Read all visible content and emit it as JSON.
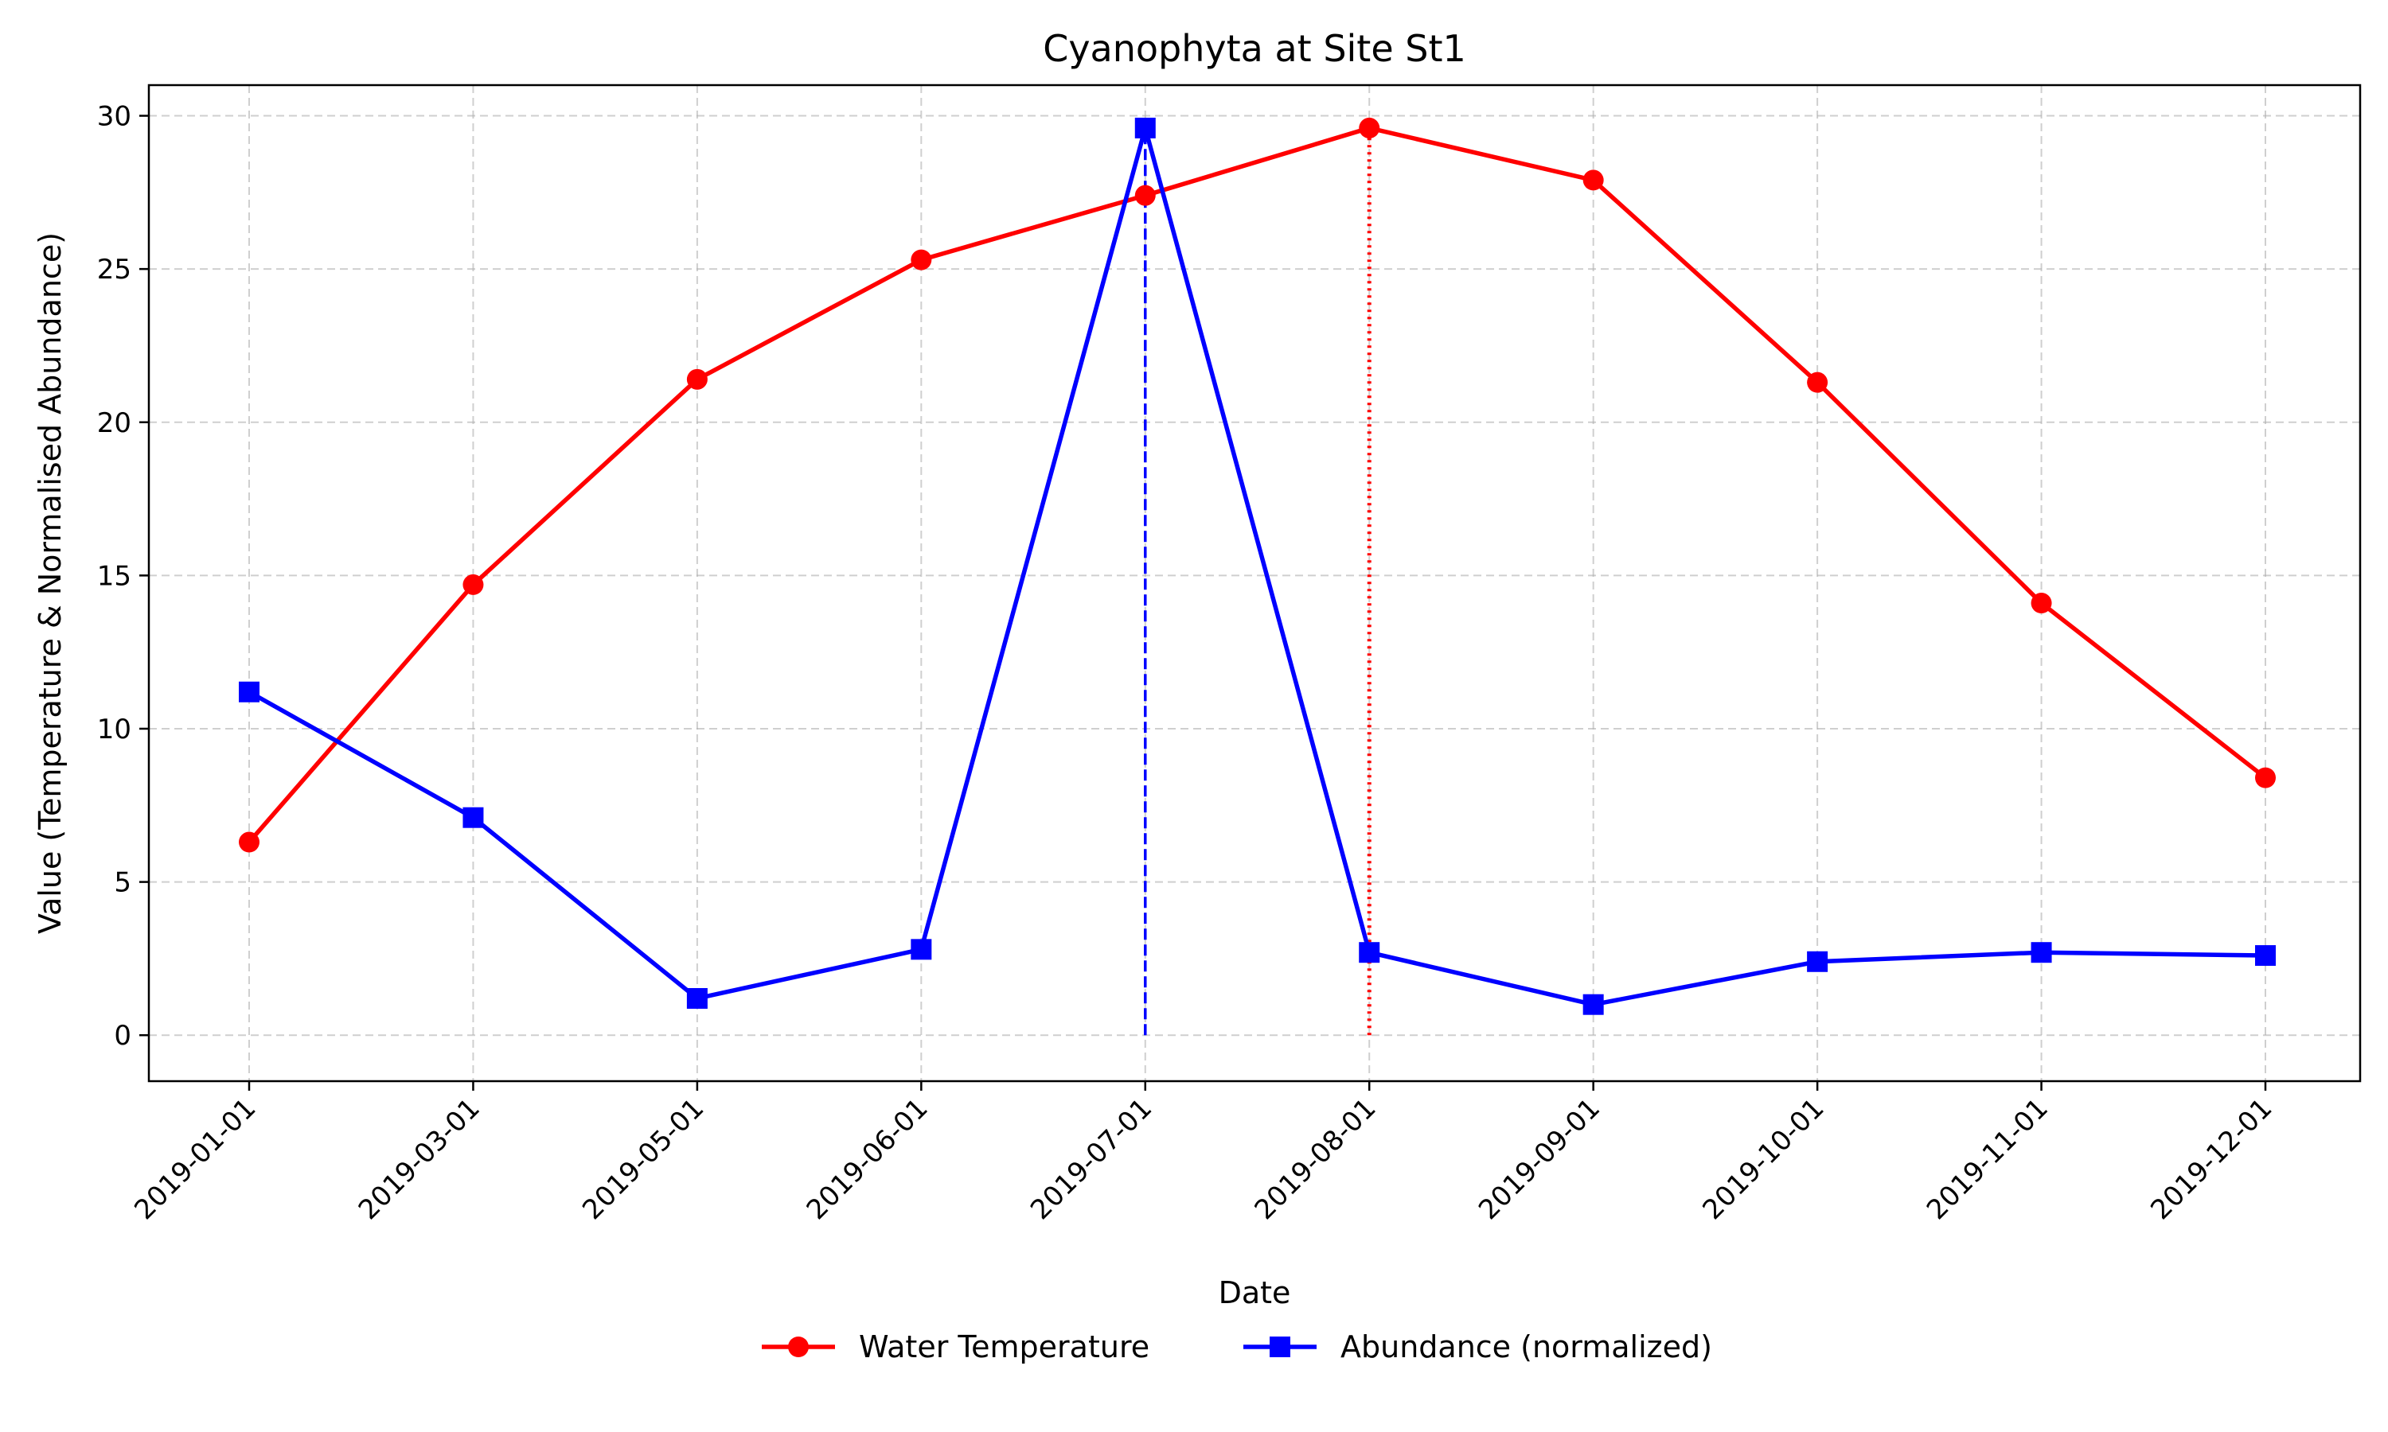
{
  "chart_data": {
    "type": "line",
    "title": "Cyanophyta at Site St1",
    "xlabel": "Date",
    "ylabel": "Value (Temperature & Normalised Abundance)",
    "categories": [
      "2019-01-01",
      "2019-03-01",
      "2019-05-01",
      "2019-06-01",
      "2019-07-01",
      "2019-08-01",
      "2019-09-01",
      "2019-10-01",
      "2019-11-01",
      "2019-12-01"
    ],
    "ylim": [
      -1.5,
      31
    ],
    "yticks": [
      0,
      5,
      10,
      15,
      20,
      25,
      30
    ],
    "grid": true,
    "legend_position": "bottom-center",
    "series": [
      {
        "name": "Water Temperature",
        "color": "#ff0000",
        "marker": "circle",
        "values": [
          6.3,
          14.7,
          21.4,
          25.3,
          27.4,
          29.6,
          27.9,
          21.3,
          14.1,
          8.4
        ]
      },
      {
        "name": "Abundance (normalized)",
        "color": "#0000ff",
        "marker": "square",
        "values": [
          11.2,
          7.1,
          1.2,
          2.8,
          29.6,
          2.7,
          1.0,
          2.4,
          2.7,
          2.6
        ]
      }
    ],
    "reference_lines": [
      {
        "category": "2019-07-01",
        "color": "#0000ff",
        "style": "dashed",
        "y_from": 0,
        "y_to": 29.6
      },
      {
        "category": "2019-08-01",
        "color": "#ff0000",
        "style": "dotted",
        "y_from": 0,
        "y_to": 29.6
      }
    ]
  }
}
